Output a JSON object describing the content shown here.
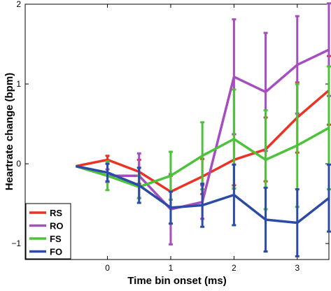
{
  "chart_data": {
    "type": "line",
    "xlabel": "Time bin onset (ms)",
    "ylabel": "Heartrate change (bpm)",
    "xlim": [
      -1.3,
      3.5
    ],
    "ylim": [
      -1.2,
      2.0
    ],
    "xticks": [
      0,
      1,
      2,
      3
    ],
    "yticks": [
      -1,
      0,
      1,
      2
    ],
    "xtick_labels": [
      "0",
      "1",
      "2",
      "3"
    ],
    "ytick_labels": [
      "−1",
      "0",
      "1",
      "2"
    ],
    "grid": false,
    "legend_position": "bottom-left",
    "x": [
      -0.5,
      0.0,
      0.5,
      1.0,
      1.5,
      2.0,
      2.5,
      3.0,
      3.5
    ],
    "series": [
      {
        "name": "RS",
        "color": "#ea3324",
        "values": [
          -0.03,
          0.05,
          -0.1,
          -0.35,
          -0.16,
          0.05,
          0.18,
          0.58,
          0.92
        ],
        "errors": [
          0.0,
          0.05,
          0.15,
          0.2,
          0.22,
          0.32,
          0.4,
          0.44,
          0.43
        ]
      },
      {
        "name": "RO",
        "color": "#a64dc0",
        "values": [
          -0.03,
          -0.15,
          -0.15,
          -0.57,
          -0.48,
          1.09,
          0.9,
          1.24,
          1.43
        ],
        "errors": [
          0.0,
          0.08,
          0.28,
          0.44,
          0.21,
          0.72,
          0.74,
          0.61,
          0.58
        ]
      },
      {
        "name": "FS",
        "color": "#4cc33a",
        "values": [
          -0.03,
          -0.15,
          -0.29,
          -0.15,
          0.1,
          0.31,
          0.05,
          0.23,
          0.45
        ],
        "errors": [
          0.0,
          0.18,
          0.14,
          0.3,
          0.42,
          0.62,
          0.62,
          0.77,
          0.77
        ]
      },
      {
        "name": "FO",
        "color": "#2b4ba6",
        "values": [
          -0.03,
          -0.11,
          -0.27,
          -0.55,
          -0.52,
          -0.39,
          -0.7,
          -0.74,
          -0.43
        ],
        "errors": [
          0.0,
          0.11,
          0.22,
          0.2,
          0.27,
          0.38,
          0.4,
          0.42,
          0.42
        ]
      }
    ]
  }
}
